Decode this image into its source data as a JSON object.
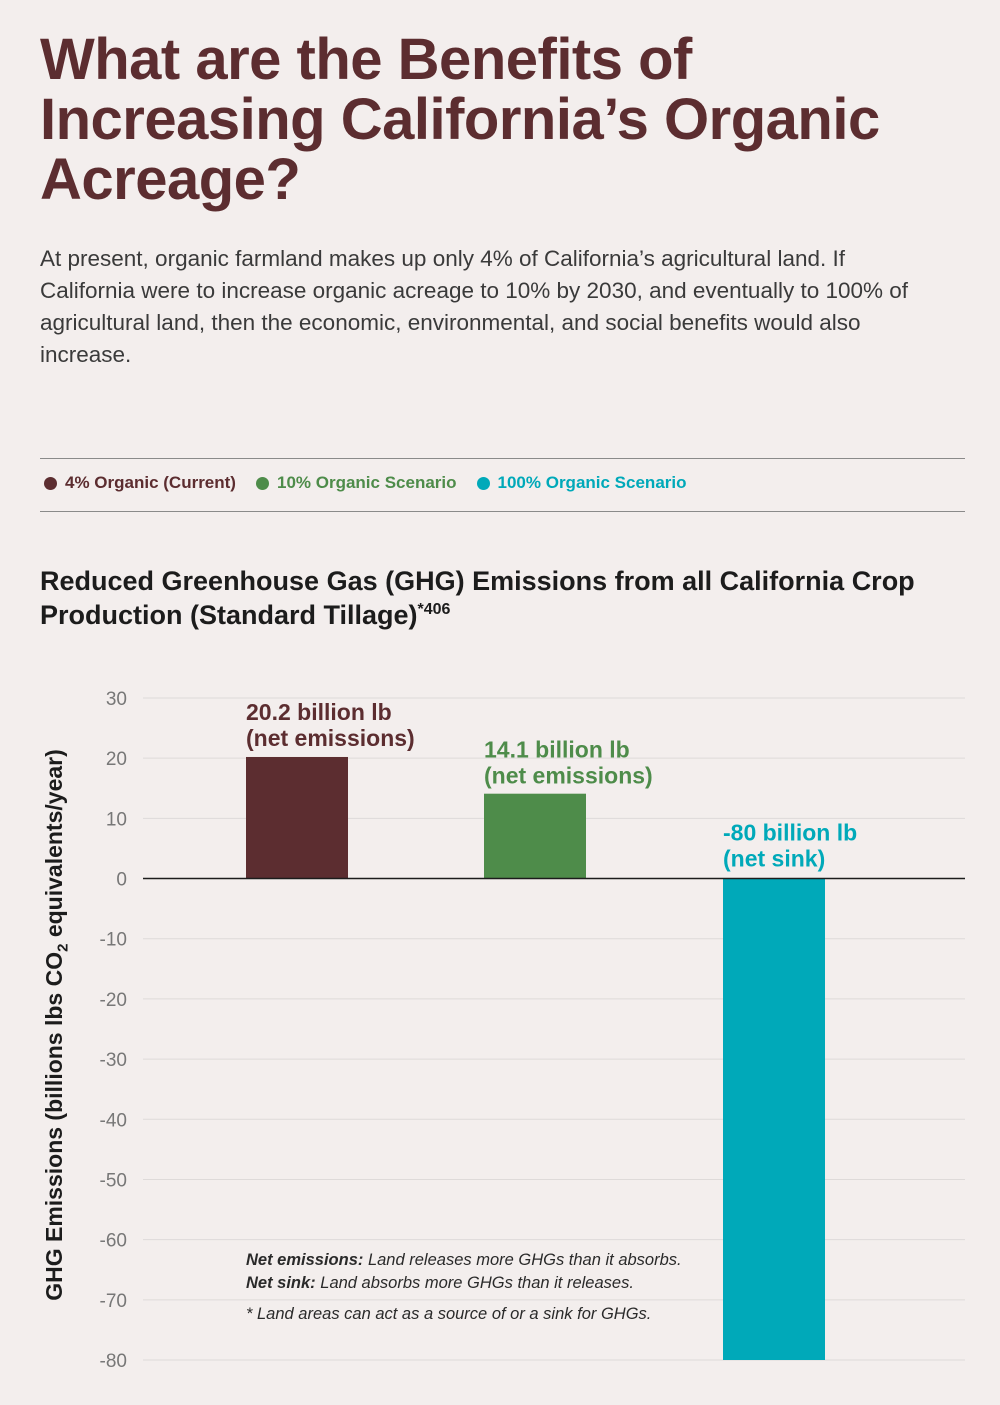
{
  "title": "What are the Benefits of Increasing California’s Organic Acreage?",
  "intro": "At present, organic farmland makes up only 4% of California’s agricultural land. If California were to increase organic acreage to 10% by 2030, and eventually to 100% of agricultural land, then the economic, environmental, and social benefits would also increase.",
  "legend": [
    {
      "label": "4% Organic (Current)",
      "color": "#5c2d30"
    },
    {
      "label": "10% Organic Scenario",
      "color": "#4e8c4a"
    },
    {
      "label": "100% Organic Scenario",
      "color": "#00a9b9"
    }
  ],
  "chart_title": "Reduced Greenhouse Gas (GHG) Emissions from all California Crop Production (Standard Tillage)",
  "chart_title_sup": "*406",
  "ylabel": {
    "prefix": "GHG Emissions (billions lbs CO",
    "sub": "2",
    "suffix": " equivalents/year)"
  },
  "notes": {
    "net_emissions_term": "Net emissions:",
    "net_emissions_text": " Land releases more GHGs than it absorbs.",
    "net_sink_term": "Net sink:",
    "net_sink_text": " Land absorbs more GHGs than it releases.",
    "footnote": "* Land areas can act as a source of or a sink for GHGs."
  },
  "chart_data": {
    "type": "bar",
    "categories": [
      "4% Organic (Current)",
      "10% Organic Scenario",
      "100% Organic Scenario"
    ],
    "values": [
      20.2,
      14.1,
      -80
    ],
    "colors": [
      "#5c2d30",
      "#4e8c4a",
      "#00a9b9"
    ],
    "data_labels": [
      [
        "20.2 billion lb",
        "(net emissions)"
      ],
      [
        "14.1 billion lb",
        "(net emissions)"
      ],
      [
        "-80 billion lb",
        "(net sink)"
      ]
    ],
    "ylim": [
      -80,
      30
    ],
    "yticks": [
      30,
      20,
      10,
      0,
      -10,
      -20,
      -30,
      -40,
      -50,
      -60,
      -70,
      -80
    ],
    "grid": true
  }
}
